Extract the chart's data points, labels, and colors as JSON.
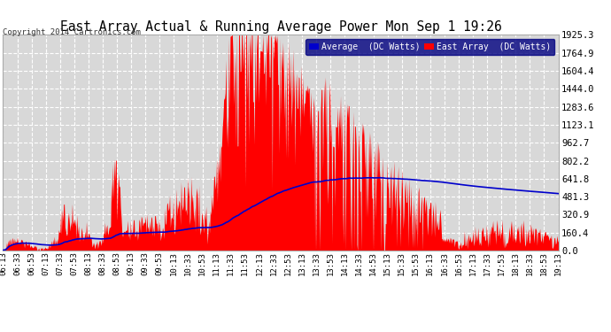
{
  "title": "East Array Actual & Running Average Power Mon Sep 1 19:26",
  "copyright": "Copyright 2014 Cartronics.com",
  "legend_avg": "Average  (DC Watts)",
  "legend_east": "East Array  (DC Watts)",
  "y_max": 1925.3,
  "y_ticks": [
    0.0,
    160.4,
    320.9,
    481.3,
    641.8,
    802.2,
    962.7,
    1123.1,
    1283.6,
    1444.0,
    1604.4,
    1764.9,
    1925.3
  ],
  "background_color": "#ffffff",
  "plot_bg_color": "#d8d8d8",
  "grid_color": "#ffffff",
  "bar_color": "#ff0000",
  "avg_line_color": "#0000cc",
  "title_color": "#000000",
  "start_time": "06:13",
  "end_time": "19:14",
  "tick_interval_min": 20
}
